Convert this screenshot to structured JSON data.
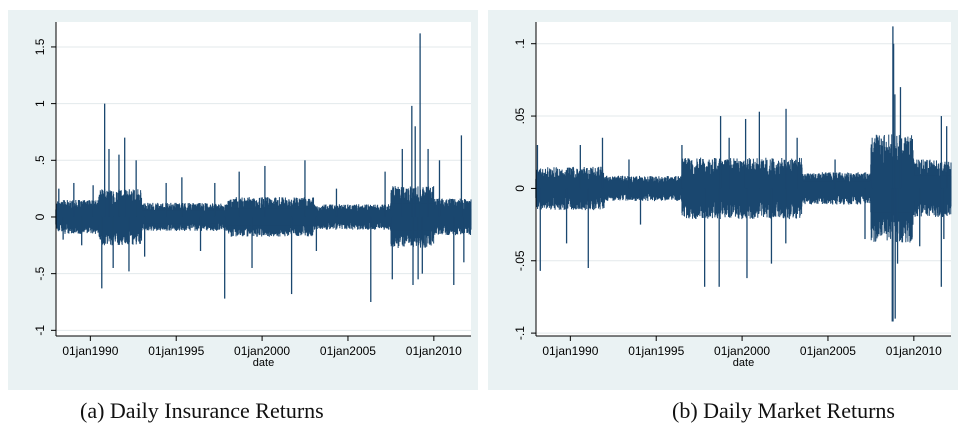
{
  "chart_data": [
    {
      "type": "line",
      "caption": "(a) Daily Insurance Returns",
      "xlabel": "date",
      "ylabel": "",
      "x_tick_labels": [
        "01jan1990",
        "01jan1995",
        "01jan2000",
        "01jan2005",
        "01jan2010"
      ],
      "x_tick_years": [
        1990,
        1995,
        2000,
        2005,
        2010
      ],
      "xlim": [
        "1988-01-01",
        "2012-03-01"
      ],
      "y_ticks": [
        -1,
        -0.5,
        0,
        0.5,
        1,
        1.5
      ],
      "y_tick_labels": [
        "-1",
        "-.5",
        "0",
        ".5",
        "1",
        "1.5"
      ],
      "ylim": [
        -1.05,
        1.72
      ],
      "grid": true,
      "series": [
        {
          "color": "#1a476f",
          "base_band": [
            {
              "start": "1988-01-01",
              "end": "1990-06-30",
              "amp": 0.12
            },
            {
              "start": "1990-07-01",
              "end": "1992-12-31",
              "amp": 0.2
            },
            {
              "start": "1993-01-01",
              "end": "1997-12-31",
              "amp": 0.1
            },
            {
              "start": "1998-01-01",
              "end": "2002-12-31",
              "amp": 0.14
            },
            {
              "start": "2003-01-01",
              "end": "2007-06-30",
              "amp": 0.09
            },
            {
              "start": "2007-07-01",
              "end": "2009-12-31",
              "amp": 0.22
            },
            {
              "start": "2010-01-01",
              "end": "2012-03-01",
              "amp": 0.13
            }
          ],
          "spikes": [
            {
              "date": "1988-03-01",
              "value": 0.25
            },
            {
              "date": "1988-06-01",
              "value": -0.2
            },
            {
              "date": "1989-01-15",
              "value": 0.3
            },
            {
              "date": "1989-07-01",
              "value": -0.25
            },
            {
              "date": "1990-03-01",
              "value": 0.28
            },
            {
              "date": "1990-09-01",
              "value": -0.63
            },
            {
              "date": "1990-11-01",
              "value": 1.0
            },
            {
              "date": "1991-02-01",
              "value": 0.6
            },
            {
              "date": "1991-05-01",
              "value": -0.45
            },
            {
              "date": "1991-09-01",
              "value": 0.55
            },
            {
              "date": "1992-01-01",
              "value": 0.7
            },
            {
              "date": "1992-04-01",
              "value": -0.48
            },
            {
              "date": "1992-09-01",
              "value": 0.5
            },
            {
              "date": "1993-03-01",
              "value": -0.35
            },
            {
              "date": "1994-06-01",
              "value": 0.3
            },
            {
              "date": "1995-05-01",
              "value": 0.35
            },
            {
              "date": "1996-06-01",
              "value": -0.3
            },
            {
              "date": "1997-04-01",
              "value": 0.3
            },
            {
              "date": "1997-10-28",
              "value": -0.72
            },
            {
              "date": "1998-09-01",
              "value": 0.4
            },
            {
              "date": "1999-06-01",
              "value": -0.45
            },
            {
              "date": "2000-03-01",
              "value": 0.45
            },
            {
              "date": "2001-09-20",
              "value": -0.68
            },
            {
              "date": "2002-07-01",
              "value": 0.5
            },
            {
              "date": "2003-03-01",
              "value": -0.3
            },
            {
              "date": "2004-05-01",
              "value": 0.25
            },
            {
              "date": "2006-05-01",
              "value": -0.75
            },
            {
              "date": "2007-03-01",
              "value": 0.4
            },
            {
              "date": "2007-08-01",
              "value": -0.55
            },
            {
              "date": "2008-03-01",
              "value": 0.6
            },
            {
              "date": "2008-09-20",
              "value": 0.98
            },
            {
              "date": "2008-10-15",
              "value": -0.6
            },
            {
              "date": "2008-12-01",
              "value": 0.8
            },
            {
              "date": "2009-02-01",
              "value": -0.55
            },
            {
              "date": "2009-03-15",
              "value": 1.62
            },
            {
              "date": "2009-05-01",
              "value": -0.5
            },
            {
              "date": "2009-09-01",
              "value": 0.6
            },
            {
              "date": "2010-05-01",
              "value": 0.5
            },
            {
              "date": "2011-03-01",
              "value": -0.6
            },
            {
              "date": "2011-08-10",
              "value": 0.72
            },
            {
              "date": "2011-10-01",
              "value": -0.4
            }
          ]
        }
      ]
    },
    {
      "type": "line",
      "caption": "(b) Daily Market Returns",
      "xlabel": "date",
      "ylabel": "",
      "x_tick_labels": [
        "01jan1990",
        "01jan1995",
        "01jan2000",
        "01jan2005",
        "01jan2010"
      ],
      "x_tick_years": [
        1990,
        1995,
        2000,
        2005,
        2010
      ],
      "xlim": [
        "1988-01-01",
        "2012-03-01"
      ],
      "y_ticks": [
        -0.1,
        -0.05,
        0,
        0.05,
        0.1
      ],
      "y_tick_labels": [
        "-.1",
        "-.05",
        "0",
        ".05",
        ".1"
      ],
      "ylim": [
        -0.102,
        0.115
      ],
      "grid": true,
      "series": [
        {
          "color": "#1a476f",
          "base_band": [
            {
              "start": "1988-01-01",
              "end": "1991-12-31",
              "amp": 0.012
            },
            {
              "start": "1992-01-01",
              "end": "1996-06-30",
              "amp": 0.007
            },
            {
              "start": "1996-07-01",
              "end": "2003-06-30",
              "amp": 0.017
            },
            {
              "start": "2003-07-01",
              "end": "2007-06-30",
              "amp": 0.009
            },
            {
              "start": "2007-07-01",
              "end": "2009-12-31",
              "amp": 0.03
            },
            {
              "start": "2010-01-01",
              "end": "2012-03-01",
              "amp": 0.016
            }
          ],
          "spikes": [
            {
              "date": "1988-02-01",
              "value": 0.03
            },
            {
              "date": "1988-04-01",
              "value": -0.057
            },
            {
              "date": "1989-10-13",
              "value": -0.038
            },
            {
              "date": "1990-08-01",
              "value": 0.03
            },
            {
              "date": "1991-01-17",
              "value": -0.055
            },
            {
              "date": "1991-11-15",
              "value": 0.035
            },
            {
              "date": "1993-06-01",
              "value": 0.02
            },
            {
              "date": "1994-02-01",
              "value": -0.025
            },
            {
              "date": "1996-07-01",
              "value": 0.03
            },
            {
              "date": "1997-10-27",
              "value": -0.068
            },
            {
              "date": "1998-09-01",
              "value": -0.068
            },
            {
              "date": "1998-10-01",
              "value": 0.05
            },
            {
              "date": "1999-04-01",
              "value": 0.035
            },
            {
              "date": "2000-04-14",
              "value": -0.062
            },
            {
              "date": "2000-03-16",
              "value": 0.048
            },
            {
              "date": "2001-01-03",
              "value": 0.053
            },
            {
              "date": "2001-09-17",
              "value": -0.052
            },
            {
              "date": "2002-07-24",
              "value": 0.055
            },
            {
              "date": "2002-07-19",
              "value": -0.038
            },
            {
              "date": "2003-03-17",
              "value": 0.035
            },
            {
              "date": "2005-06-01",
              "value": 0.02
            },
            {
              "date": "2007-02-27",
              "value": -0.035
            },
            {
              "date": "2007-08-01",
              "value": 0.025
            },
            {
              "date": "2008-09-29",
              "value": -0.092
            },
            {
              "date": "2008-10-13",
              "value": 0.112
            },
            {
              "date": "2008-10-15",
              "value": -0.092
            },
            {
              "date": "2008-10-28",
              "value": 0.1
            },
            {
              "date": "2008-11-24",
              "value": 0.065
            },
            {
              "date": "2008-12-01",
              "value": -0.09
            },
            {
              "date": "2009-03-23",
              "value": 0.07
            },
            {
              "date": "2009-01-20",
              "value": -0.052
            },
            {
              "date": "2010-05-06",
              "value": -0.04
            },
            {
              "date": "2011-08-08",
              "value": -0.068
            },
            {
              "date": "2011-08-09",
              "value": 0.05
            },
            {
              "date": "2011-11-30",
              "value": 0.043
            },
            {
              "date": "2011-10-01",
              "value": -0.035
            }
          ]
        }
      ]
    }
  ]
}
